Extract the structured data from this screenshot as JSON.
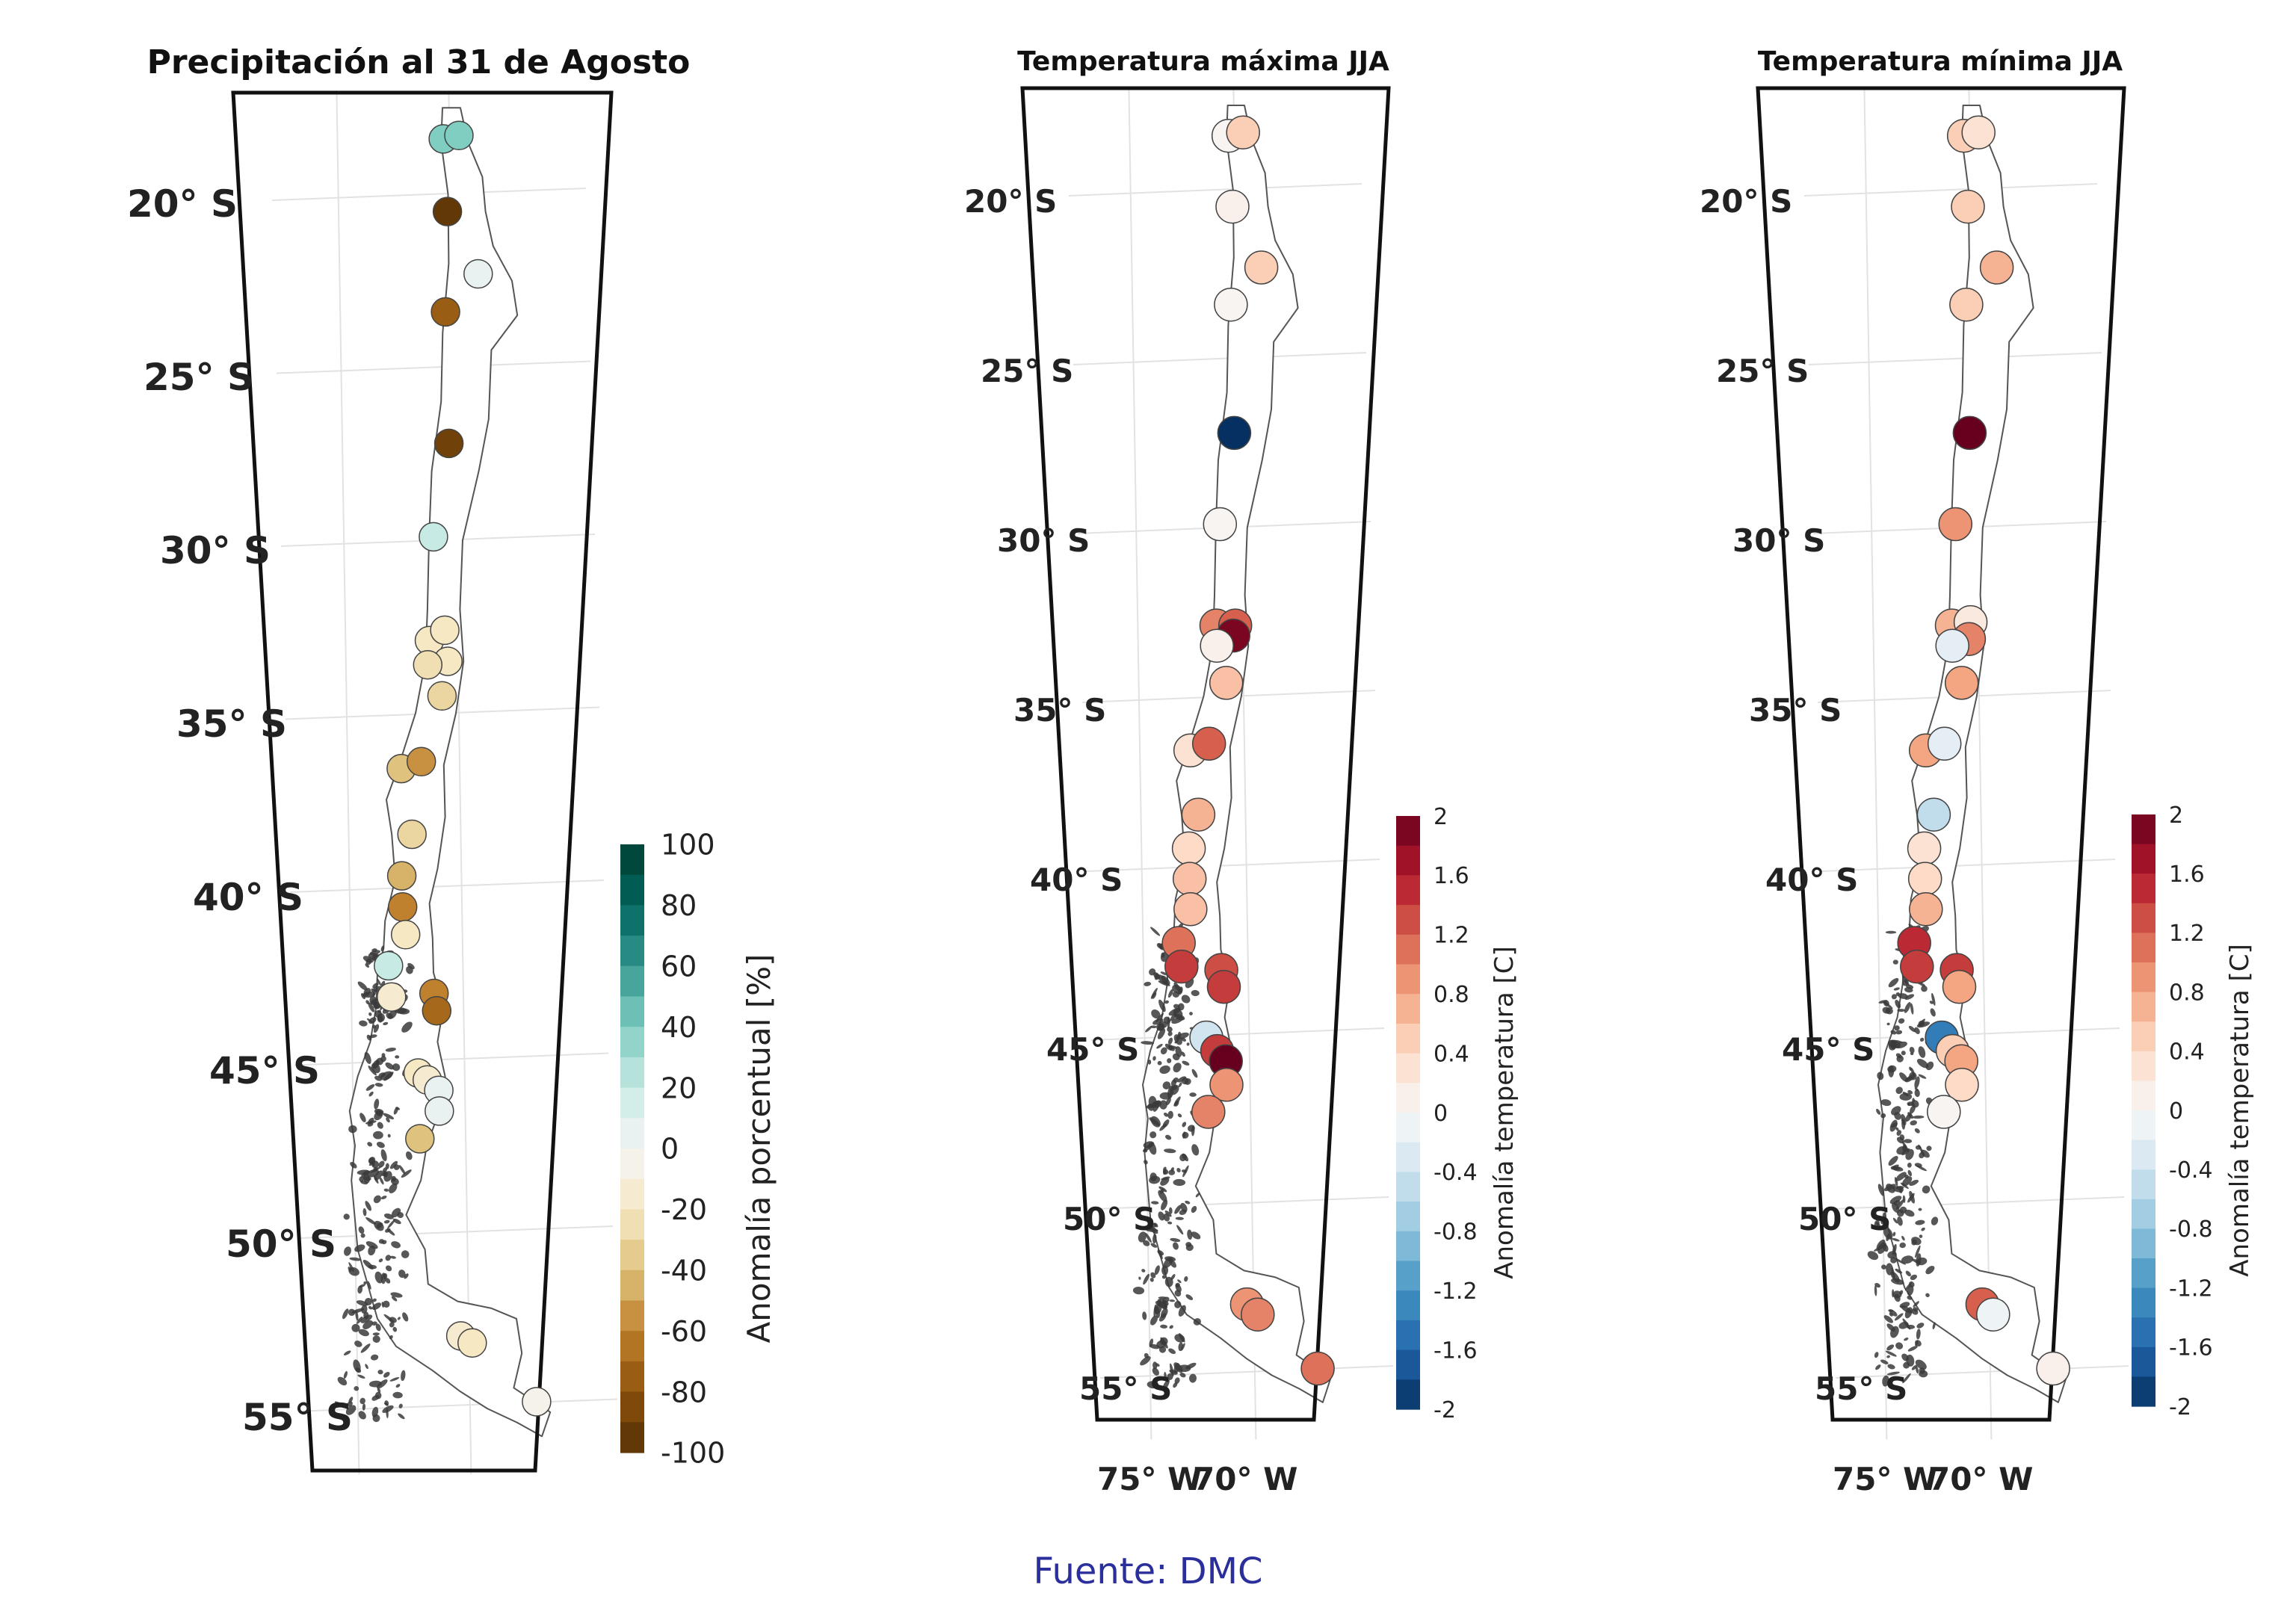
{
  "source": "Fuente: DMC",
  "lat_labels": [
    "20° S",
    "25° S",
    "30° S",
    "35° S",
    "40° S",
    "45° S",
    "50° S",
    "55° S"
  ],
  "lon_labels": [
    "75° W",
    "70° W"
  ],
  "chart_data": [
    {
      "type": "scatter",
      "title": "Precipitación al 31 de Agosto",
      "colorbar_label": "Anomalía porcentual [%]",
      "colorbar_ticks": [
        "100",
        "80",
        "60",
        "40",
        "20",
        "0",
        "-20",
        "-40",
        "-60",
        "-80",
        "-100"
      ],
      "value_range": [
        -100,
        100
      ],
      "colormap": "brown-white-teal",
      "stations": [
        {
          "lat": -18.4,
          "lon": -70.3,
          "value": 40
        },
        {
          "lat": -18.3,
          "lon": -69.6,
          "value": 40
        },
        {
          "lat": -20.5,
          "lon": -70.2,
          "value": -95
        },
        {
          "lat": -22.3,
          "lon": -68.9,
          "value": 5
        },
        {
          "lat": -23.4,
          "lon": -70.4,
          "value": -75
        },
        {
          "lat": -27.2,
          "lon": -70.4,
          "value": -90
        },
        {
          "lat": -29.9,
          "lon": -71.2,
          "value": 20
        },
        {
          "lat": -32.9,
          "lon": -71.5,
          "value": -20
        },
        {
          "lat": -32.6,
          "lon": -70.8,
          "value": -20
        },
        {
          "lat": -33.5,
          "lon": -70.7,
          "value": -20
        },
        {
          "lat": -33.6,
          "lon": -71.6,
          "value": -25
        },
        {
          "lat": -34.5,
          "lon": -71.0,
          "value": -30
        },
        {
          "lat": -36.6,
          "lon": -72.9,
          "value": -40
        },
        {
          "lat": -36.4,
          "lon": -72.0,
          "value": -55
        },
        {
          "lat": -38.5,
          "lon": -72.5,
          "value": -30
        },
        {
          "lat": -39.7,
          "lon": -73.0,
          "value": -45
        },
        {
          "lat": -40.6,
          "lon": -73.0,
          "value": -60
        },
        {
          "lat": -41.4,
          "lon": -72.9,
          "value": -20
        },
        {
          "lat": -42.3,
          "lon": -73.7,
          "value": 20
        },
        {
          "lat": -43.2,
          "lon": -73.6,
          "value": -15
        },
        {
          "lat": -43.1,
          "lon": -71.7,
          "value": -60
        },
        {
          "lat": -43.6,
          "lon": -71.6,
          "value": -70
        },
        {
          "lat": -45.4,
          "lon": -72.5,
          "value": -20
        },
        {
          "lat": -45.6,
          "lon": -72.1,
          "value": -15
        },
        {
          "lat": -45.9,
          "lon": -71.6,
          "value": 5
        },
        {
          "lat": -46.5,
          "lon": -71.6,
          "value": 5
        },
        {
          "lat": -47.3,
          "lon": -72.5,
          "value": -40
        },
        {
          "lat": -53.0,
          "lon": -70.9,
          "value": -15
        },
        {
          "lat": -53.2,
          "lon": -70.4,
          "value": -20
        },
        {
          "lat": -54.9,
          "lon": -67.6,
          "value": -5
        }
      ]
    },
    {
      "type": "scatter",
      "title": "Temperatura máxima JJA",
      "colorbar_label": "Anomalía temperatura [C]",
      "colorbar_ticks": [
        "2",
        "1.6",
        "1.2",
        "0.8",
        "0.4",
        "0",
        "-0.4",
        "-0.8",
        "-1.2",
        "-1.6",
        "-2"
      ],
      "value_range": [
        -2,
        2
      ],
      "colormap": "RdBu_r",
      "stations": [
        {
          "lat": -18.4,
          "lon": -70.3,
          "value": 0.05
        },
        {
          "lat": -18.3,
          "lon": -69.6,
          "value": 0.5
        },
        {
          "lat": -20.5,
          "lon": -70.2,
          "value": 0.1
        },
        {
          "lat": -22.3,
          "lon": -68.9,
          "value": 0.5
        },
        {
          "lat": -23.4,
          "lon": -70.4,
          "value": 0.05
        },
        {
          "lat": -27.2,
          "lon": -70.4,
          "value": -2.0
        },
        {
          "lat": -29.9,
          "lon": -71.2,
          "value": 0.05
        },
        {
          "lat": -32.9,
          "lon": -71.5,
          "value": 1.0
        },
        {
          "lat": -32.9,
          "lon": -70.6,
          "value": 1.2
        },
        {
          "lat": -33.2,
          "lon": -70.7,
          "value": 1.9
        },
        {
          "lat": -33.5,
          "lon": -71.5,
          "value": 0.1
        },
        {
          "lat": -34.6,
          "lon": -71.1,
          "value": 0.6
        },
        {
          "lat": -36.6,
          "lon": -72.9,
          "value": 0.3
        },
        {
          "lat": -36.4,
          "lon": -72.0,
          "value": 1.2
        },
        {
          "lat": -38.5,
          "lon": -72.6,
          "value": 0.7
        },
        {
          "lat": -39.5,
          "lon": -73.1,
          "value": 0.4
        },
        {
          "lat": -40.4,
          "lon": -73.1,
          "value": 0.6
        },
        {
          "lat": -41.3,
          "lon": -73.1,
          "value": 0.6
        },
        {
          "lat": -42.3,
          "lon": -73.7,
          "value": 1.1
        },
        {
          "lat": -43.0,
          "lon": -73.6,
          "value": 1.4
        },
        {
          "lat": -43.1,
          "lon": -71.7,
          "value": 1.3
        },
        {
          "lat": -43.6,
          "lon": -71.6,
          "value": 1.4
        },
        {
          "lat": -45.1,
          "lon": -72.5,
          "value": -0.4
        },
        {
          "lat": -45.5,
          "lon": -72.0,
          "value": 1.4
        },
        {
          "lat": -45.8,
          "lon": -71.6,
          "value": 2.0
        },
        {
          "lat": -46.5,
          "lon": -71.6,
          "value": 0.9
        },
        {
          "lat": -47.3,
          "lon": -72.5,
          "value": 1.0
        },
        {
          "lat": -53.0,
          "lon": -70.9,
          "value": 0.9
        },
        {
          "lat": -53.3,
          "lon": -70.4,
          "value": 1.0
        },
        {
          "lat": -54.9,
          "lon": -67.6,
          "value": 1.1
        }
      ]
    },
    {
      "type": "scatter",
      "title": "Temperatura mínima JJA",
      "colorbar_label": "Anomalía temperatura [C]",
      "colorbar_ticks": [
        "2",
        "1.6",
        "1.2",
        "0.8",
        "0.4",
        "0",
        "-0.4",
        "-0.8",
        "-1.2",
        "-1.6",
        "-2"
      ],
      "value_range": [
        -2,
        2
      ],
      "colormap": "RdBu_r",
      "stations": [
        {
          "lat": -18.4,
          "lon": -70.3,
          "value": 0.5
        },
        {
          "lat": -18.3,
          "lon": -69.6,
          "value": 0.3
        },
        {
          "lat": -20.5,
          "lon": -70.2,
          "value": 0.5
        },
        {
          "lat": -22.3,
          "lon": -68.9,
          "value": 0.7
        },
        {
          "lat": -23.4,
          "lon": -70.4,
          "value": 0.5
        },
        {
          "lat": -27.2,
          "lon": -70.4,
          "value": 2.0
        },
        {
          "lat": -29.9,
          "lon": -71.2,
          "value": 0.9
        },
        {
          "lat": -32.9,
          "lon": -71.5,
          "value": 0.7
        },
        {
          "lat": -32.8,
          "lon": -70.6,
          "value": 0.2
        },
        {
          "lat": -33.3,
          "lon": -70.7,
          "value": 1.0
        },
        {
          "lat": -33.5,
          "lon": -71.5,
          "value": -0.2
        },
        {
          "lat": -34.6,
          "lon": -71.1,
          "value": 0.8
        },
        {
          "lat": -36.6,
          "lon": -72.9,
          "value": 0.8
        },
        {
          "lat": -36.4,
          "lon": -72.0,
          "value": -0.2
        },
        {
          "lat": -38.5,
          "lon": -72.6,
          "value": -0.5
        },
        {
          "lat": -39.5,
          "lon": -73.1,
          "value": 0.3
        },
        {
          "lat": -40.4,
          "lon": -73.1,
          "value": 0.4
        },
        {
          "lat": -41.3,
          "lon": -73.1,
          "value": 0.7
        },
        {
          "lat": -42.3,
          "lon": -73.7,
          "value": 1.5
        },
        {
          "lat": -43.0,
          "lon": -73.6,
          "value": 1.4
        },
        {
          "lat": -43.1,
          "lon": -71.7,
          "value": 1.4
        },
        {
          "lat": -43.6,
          "lon": -71.6,
          "value": 0.8
        },
        {
          "lat": -45.1,
          "lon": -72.5,
          "value": -1.4
        },
        {
          "lat": -45.5,
          "lon": -72.0,
          "value": 0.5
        },
        {
          "lat": -45.8,
          "lon": -71.6,
          "value": 0.8
        },
        {
          "lat": -46.5,
          "lon": -71.6,
          "value": 0.4
        },
        {
          "lat": -47.3,
          "lon": -72.5,
          "value": 0.05
        },
        {
          "lat": -53.0,
          "lon": -70.9,
          "value": 1.2
        },
        {
          "lat": -53.3,
          "lon": -70.4,
          "value": -0.1
        },
        {
          "lat": -54.9,
          "lon": -67.6,
          "value": 0.1
        }
      ]
    }
  ]
}
